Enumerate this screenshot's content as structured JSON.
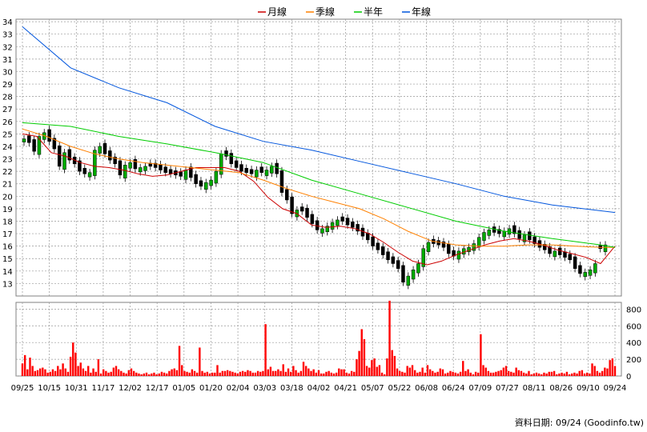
{
  "legend": [
    {
      "label": "月線",
      "color": "#cc0000"
    },
    {
      "label": "季線",
      "color": "#ff8000"
    },
    {
      "label": "半年",
      "color": "#00cc00"
    },
    {
      "label": "年線",
      "color": "#0055dd"
    }
  ],
  "credit": "資料日期: 09/24  (Goodinfo.tw)",
  "colors": {
    "up": "#00aa00",
    "down": "#cc0000",
    "volume": "#ff0000",
    "grid": "#999999"
  },
  "chart_data": [
    {
      "type": "line",
      "y_ticks": [
        "13",
        "14",
        "15",
        "16",
        "17",
        "18",
        "19",
        "20",
        "21",
        "22",
        "23",
        "24",
        "25",
        "26",
        "27",
        "28",
        "29",
        "30",
        "31",
        "32",
        "33",
        "34"
      ],
      "ylim": [
        12,
        34.2
      ],
      "x_ticks": [
        "09/25",
        "10/15",
        "10/31",
        "11/17",
        "12/02",
        "12/17",
        "01/05",
        "01/20",
        "02/04",
        "03/03",
        "03/18",
        "04/02",
        "04/21",
        "05/07",
        "05/22",
        "06/08",
        "06/24",
        "07/09",
        "07/27",
        "08/11",
        "08/26",
        "09/10",
        "09/24"
      ],
      "grid": true,
      "legend_position": "top",
      "series": [
        {
          "name": "月線",
          "x": [
            0,
            6,
            12,
            18,
            24,
            30,
            36,
            42,
            48,
            54,
            60,
            66,
            72,
            78,
            84,
            90,
            96,
            102,
            108,
            114,
            120,
            126,
            132,
            138,
            144,
            150,
            156,
            162,
            168,
            174,
            180,
            186,
            192,
            198,
            204,
            210,
            216,
            222,
            228,
            234,
            240,
            246
          ],
          "values": [
            25.0,
            24.8,
            23.5,
            23.2,
            22.7,
            22.4,
            22.3,
            22.1,
            21.8,
            21.6,
            21.7,
            22.0,
            22.3,
            22.3,
            22.3,
            22.0,
            21.2,
            19.9,
            19.0,
            18.6,
            17.7,
            17.5,
            17.6,
            17.4,
            17.0,
            16.3,
            15.5,
            14.8,
            14.5,
            14.8,
            15.3,
            15.7,
            16.1,
            16.4,
            16.6,
            16.4,
            16.1,
            15.7,
            15.4,
            15.1,
            14.6,
            16.0
          ]
        },
        {
          "name": "季線",
          "x": [
            0,
            10,
            20,
            30,
            40,
            50,
            60,
            70,
            80,
            90,
            100,
            110,
            120,
            130,
            140,
            150,
            160,
            170,
            180,
            190,
            200,
            210,
            220,
            230,
            240,
            246
          ],
          "values": [
            25.4,
            24.8,
            24.0,
            23.4,
            23.0,
            22.7,
            22.5,
            22.3,
            22.1,
            21.9,
            21.3,
            20.6,
            20.0,
            19.5,
            19.0,
            18.2,
            17.2,
            16.4,
            16.1,
            16.0,
            16.0,
            16.1,
            16.1,
            16.0,
            15.9,
            15.9
          ]
        },
        {
          "name": "半年",
          "x": [
            0,
            20,
            40,
            60,
            80,
            100,
            120,
            140,
            160,
            180,
            200,
            220,
            240,
            246
          ],
          "values": [
            25.9,
            25.6,
            24.8,
            24.2,
            23.5,
            22.7,
            21.3,
            20.2,
            19.1,
            18.0,
            17.2,
            16.6,
            16.1,
            15.9
          ]
        },
        {
          "name": "年線",
          "x": [
            0,
            20,
            40,
            60,
            80,
            100,
            120,
            140,
            160,
            180,
            200,
            220,
            246
          ],
          "values": [
            33.6,
            30.3,
            28.7,
            27.5,
            25.6,
            24.4,
            23.7,
            22.8,
            21.9,
            21.0,
            20.0,
            19.3,
            18.7
          ]
        }
      ],
      "candles_close": [
        24.6,
        24.3,
        23.6,
        24.8,
        25.1,
        24.4,
        23.8,
        22.4,
        23.5,
        22.9,
        22.6,
        22.0,
        21.8,
        21.9,
        23.7,
        24.0,
        23.4,
        22.9,
        22.6,
        21.7,
        22.5,
        22.7,
        22.2,
        22.3,
        22.4,
        22.4,
        22.3,
        22.1,
        21.9,
        21.8,
        21.7,
        21.6,
        22.1,
        21.5,
        21.0,
        20.8,
        21.1,
        21.3,
        22.0,
        23.4,
        23.2,
        22.6,
        22.3,
        22.0,
        21.9,
        21.8,
        22.1,
        21.9,
        22.1,
        22.4,
        21.8,
        20.3,
        19.7,
        18.6,
        18.9,
        18.8,
        18.3,
        17.8,
        17.3,
        17.4,
        17.6,
        17.9,
        18.1,
        18.0,
        17.7,
        17.5,
        17.2,
        16.8,
        16.5,
        16.0,
        15.7,
        15.3,
        14.9,
        14.6,
        14.2,
        13.1,
        13.6,
        14.1,
        14.6,
        15.8,
        16.3,
        16.2,
        16.1,
        15.9,
        15.4,
        15.2,
        15.6,
        15.8,
        15.9,
        16.2,
        16.7,
        17.1,
        17.3,
        17.1,
        17.0,
        17.2,
        17.4,
        17.0,
        16.6,
        16.9,
        16.5,
        16.2,
        15.9,
        15.7,
        15.4,
        15.6,
        15.3,
        15.1,
        14.9,
        14.2,
        13.8,
        13.9,
        14.1,
        14.6,
        15.8,
        16.1
      ],
      "candles_up": [
        1,
        0,
        0,
        1,
        1,
        0,
        0,
        0,
        1,
        0,
        0,
        0,
        0,
        1,
        1,
        1,
        0,
        0,
        0,
        0,
        1,
        1,
        0,
        1,
        1,
        0,
        0,
        0,
        0,
        0,
        0,
        0,
        1,
        0,
        0,
        0,
        1,
        1,
        1,
        1,
        0,
        0,
        0,
        0,
        0,
        0,
        1,
        0,
        1,
        1,
        0,
        0,
        0,
        0,
        1,
        0,
        0,
        0,
        0,
        1,
        1,
        1,
        1,
        0,
        0,
        0,
        0,
        0,
        0,
        0,
        0,
        0,
        0,
        0,
        0,
        0,
        1,
        1,
        1,
        1,
        1,
        0,
        0,
        0,
        0,
        0,
        1,
        1,
        1,
        1,
        1,
        1,
        1,
        0,
        0,
        1,
        1,
        0,
        0,
        1,
        0,
        0,
        0,
        0,
        0,
        1,
        0,
        0,
        0,
        0,
        0,
        1,
        1,
        1,
        0,
        1
      ]
    },
    {
      "type": "bar",
      "y_ticks": [
        "0",
        "200",
        "400",
        "600",
        "800"
      ],
      "ylim": [
        0,
        880
      ],
      "values": [
        150,
        250,
        80,
        220,
        120,
        60,
        70,
        90,
        100,
        80,
        40,
        50,
        80,
        60,
        120,
        80,
        150,
        90,
        50,
        230,
        400,
        280,
        120,
        160,
        90,
        60,
        120,
        40,
        90,
        50,
        200,
        30,
        80,
        60,
        40,
        50,
        100,
        120,
        80,
        60,
        40,
        30,
        70,
        90,
        60,
        40,
        30,
        20,
        30,
        40,
        20,
        30,
        40,
        20,
        30,
        50,
        40,
        30,
        60,
        80,
        90,
        70,
        360,
        130,
        60,
        50,
        40,
        80,
        60,
        40,
        340,
        60,
        40,
        50,
        30,
        40,
        40,
        130,
        40,
        60,
        60,
        70,
        60,
        50,
        40,
        30,
        50,
        60,
        50,
        70,
        60,
        40,
        40,
        60,
        50,
        60,
        620,
        80,
        110,
        60,
        60,
        80,
        60,
        140,
        50,
        90,
        50,
        120,
        70,
        40,
        60,
        170,
        120,
        90,
        60,
        80,
        40,
        70,
        30,
        30,
        50,
        60,
        40,
        30,
        40,
        90,
        80,
        80,
        40,
        30,
        60,
        50,
        200,
        300,
        560,
        440,
        120,
        100,
        190,
        210,
        110,
        130,
        40,
        20,
        210,
        900,
        310,
        240,
        90,
        60,
        50,
        40,
        120,
        100,
        130,
        70,
        40,
        50,
        100,
        40,
        130,
        80,
        60,
        40,
        50,
        90,
        80,
        30,
        40,
        60,
        50,
        40,
        30,
        50,
        180,
        60,
        80,
        40,
        20,
        50,
        40,
        500,
        130,
        100,
        60,
        40,
        40,
        50,
        60,
        70,
        100,
        120,
        60,
        50,
        40,
        100,
        70,
        60,
        40,
        30,
        60,
        20,
        30,
        40,
        30,
        20,
        40,
        30,
        50,
        50,
        60,
        20,
        30,
        40,
        30,
        50,
        20,
        30,
        40,
        30,
        60,
        70,
        30,
        40,
        30,
        150,
        120,
        60,
        40,
        60,
        100,
        90,
        190,
        210,
        120
      ]
    }
  ]
}
